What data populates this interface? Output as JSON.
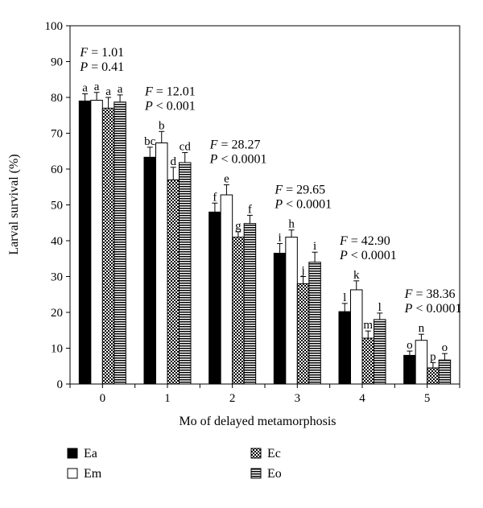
{
  "chart_data": {
    "type": "bar",
    "xlabel": "Mo of delayed metamorphosis",
    "ylabel": "Larval survival (%)",
    "ylim": [
      0,
      100
    ],
    "yticks": [
      0,
      10,
      20,
      30,
      40,
      50,
      60,
      70,
      80,
      90,
      100
    ],
    "categories": [
      "0",
      "1",
      "2",
      "3",
      "4",
      "5"
    ],
    "grid": false,
    "legend_position": "bottom",
    "series": [
      {
        "name": "Ea",
        "pattern": "solid-black",
        "values": [
          79,
          63.3,
          48,
          36.5,
          20.2,
          8
        ],
        "errors": [
          2,
          2.8,
          2.5,
          2.7,
          2.3,
          1.2
        ],
        "letters": [
          "a",
          "bc",
          "f",
          "i",
          "l",
          "o"
        ]
      },
      {
        "name": "Em",
        "pattern": "white",
        "values": [
          79.2,
          67.3,
          52.8,
          41,
          26.3,
          12.2
        ],
        "errors": [
          2.2,
          3.2,
          2.8,
          2,
          2.5,
          1.7
        ],
        "letters": [
          "a",
          "b",
          "e",
          "h",
          "k",
          "n"
        ]
      },
      {
        "name": "Ec",
        "pattern": "checkered",
        "values": [
          77,
          57,
          41,
          28,
          12.8,
          4.5
        ],
        "errors": [
          3,
          3.5,
          1.5,
          2,
          2,
          1.5
        ],
        "letters": [
          "a",
          "d",
          "g",
          "j",
          "m",
          "p"
        ]
      },
      {
        "name": "Eo",
        "pattern": "horizontal-stripes",
        "values": [
          78.7,
          61.8,
          44.8,
          34,
          18,
          6.7
        ],
        "errors": [
          2,
          2.8,
          2.3,
          2.8,
          1.8,
          1.8
        ],
        "letters": [
          "a",
          "cd",
          "f",
          "i",
          "l",
          "o"
        ]
      }
    ],
    "annotations": [
      {
        "F": "1.01",
        "P": "0.41",
        "P_op": "="
      },
      {
        "F": "12.01",
        "P": "0.001",
        "P_op": "<"
      },
      {
        "F": "28.27",
        "P": "0.0001",
        "P_op": "<"
      },
      {
        "F": "29.65",
        "P": "0.0001",
        "P_op": "<"
      },
      {
        "F": "42.90",
        "P": "0.0001",
        "P_op": "<"
      },
      {
        "F": "38.36",
        "P": "0.0001",
        "P_op": "<"
      }
    ]
  }
}
